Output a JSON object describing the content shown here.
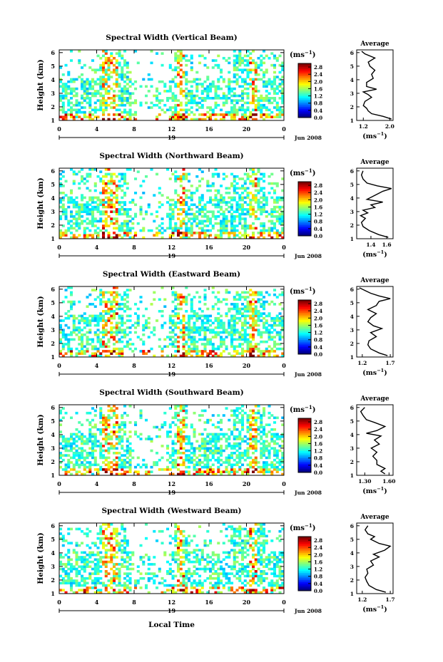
{
  "figure": {
    "xlabel_bottom": "Local Time",
    "date_label": "Jun 2008",
    "day_label": "19",
    "colorbar_unit": "(ms",
    "avg_title": "Average",
    "avg_xlabel": "(ms",
    "unit_exponent": "−1"
  },
  "chart_data": [
    {
      "type": "heatmap",
      "title": "Spectral Width (Vertical Beam)",
      "ylabel": "Height (km)",
      "xlabel": "Local Time",
      "x_ticks": [
        "0",
        "4",
        "8",
        "12",
        "16",
        "20",
        "0"
      ],
      "xlim": [
        0,
        24
      ],
      "y_ticks": [
        "1",
        "2",
        "3",
        "4",
        "5",
        "6"
      ],
      "ylim": [
        1,
        6.2
      ],
      "colorbar_ticks": [
        "0.0",
        "0.4",
        "0.8",
        "1.2",
        "1.6",
        "2.0",
        "2.4",
        "2.8"
      ],
      "colorbar_range": [
        0,
        3.0
      ],
      "average_profile": {
        "title": "Average",
        "x_ticks": [
          "1.2",
          "2.0"
        ],
        "xlim": [
          1.0,
          2.1
        ],
        "y_ticks": [
          "1",
          "2",
          "3",
          "4",
          "5",
          "6"
        ],
        "ylim": [
          1,
          6.2
        ],
        "points": [
          {
            "y": 1.1,
            "x": 2.05
          },
          {
            "y": 1.3,
            "x": 1.8
          },
          {
            "y": 1.5,
            "x": 1.45
          },
          {
            "y": 1.7,
            "x": 1.35
          },
          {
            "y": 1.9,
            "x": 1.3
          },
          {
            "y": 2.1,
            "x": 1.2
          },
          {
            "y": 2.4,
            "x": 1.25
          },
          {
            "y": 2.7,
            "x": 1.45
          },
          {
            "y": 2.9,
            "x": 1.35
          },
          {
            "y": 3.1,
            "x": 1.2
          },
          {
            "y": 3.3,
            "x": 1.6
          },
          {
            "y": 3.5,
            "x": 1.3
          },
          {
            "y": 3.8,
            "x": 1.3
          },
          {
            "y": 4.1,
            "x": 1.5
          },
          {
            "y": 4.4,
            "x": 1.45
          },
          {
            "y": 4.7,
            "x": 1.55
          },
          {
            "y": 5.0,
            "x": 1.4
          },
          {
            "y": 5.3,
            "x": 1.35
          },
          {
            "y": 5.6,
            "x": 1.55
          },
          {
            "y": 5.9,
            "x": 1.25
          },
          {
            "y": 6.1,
            "x": 1.15
          }
        ]
      }
    },
    {
      "type": "heatmap",
      "title": "Spectral Width (Northward Beam)",
      "ylabel": "Height (km)",
      "xlabel": "Local Time",
      "x_ticks": [
        "0",
        "4",
        "8",
        "12",
        "16",
        "20",
        "0"
      ],
      "xlim": [
        0,
        24
      ],
      "y_ticks": [
        "1",
        "2",
        "3",
        "4",
        "5",
        "6"
      ],
      "ylim": [
        1,
        6.2
      ],
      "colorbar_ticks": [
        "0.0",
        "0.4",
        "0.8",
        "1.2",
        "1.6",
        "2.0",
        "2.4",
        "2.8"
      ],
      "colorbar_range": [
        0,
        3.0
      ],
      "average_profile": {
        "title": "Average",
        "x_ticks": [
          "1.4",
          "1.6"
        ],
        "xlim": [
          1.22,
          1.68
        ],
        "y_ticks": [
          "1",
          "2",
          "3",
          "4",
          "5",
          "6"
        ],
        "ylim": [
          1,
          6.2
        ],
        "points": [
          {
            "y": 1.1,
            "x": 1.62
          },
          {
            "y": 1.3,
            "x": 1.5
          },
          {
            "y": 1.6,
            "x": 1.38
          },
          {
            "y": 1.9,
            "x": 1.3
          },
          {
            "y": 2.2,
            "x": 1.28
          },
          {
            "y": 2.5,
            "x": 1.33
          },
          {
            "y": 2.7,
            "x": 1.27
          },
          {
            "y": 2.9,
            "x": 1.36
          },
          {
            "y": 3.1,
            "x": 1.3
          },
          {
            "y": 3.3,
            "x": 1.45
          },
          {
            "y": 3.5,
            "x": 1.4
          },
          {
            "y": 3.7,
            "x": 1.55
          },
          {
            "y": 3.9,
            "x": 1.35
          },
          {
            "y": 4.2,
            "x": 1.45
          },
          {
            "y": 4.5,
            "x": 1.55
          },
          {
            "y": 4.7,
            "x": 1.66
          },
          {
            "y": 4.9,
            "x": 1.48
          },
          {
            "y": 5.1,
            "x": 1.35
          },
          {
            "y": 5.4,
            "x": 1.3
          },
          {
            "y": 5.7,
            "x": 1.28
          },
          {
            "y": 6.0,
            "x": 1.3
          }
        ]
      }
    },
    {
      "type": "heatmap",
      "title": "Spectral Width (Eastward Beam)",
      "ylabel": "Height (km)",
      "xlabel": "Local Time",
      "x_ticks": [
        "0",
        "4",
        "8",
        "12",
        "16",
        "20",
        "0"
      ],
      "xlim": [
        0,
        24
      ],
      "y_ticks": [
        "1",
        "2",
        "3",
        "4",
        "5",
        "6"
      ],
      "ylim": [
        1,
        6.2
      ],
      "colorbar_ticks": [
        "0.0",
        "0.4",
        "0.8",
        "1.2",
        "1.6",
        "2.0",
        "2.4",
        "2.8"
      ],
      "colorbar_range": [
        0,
        3.0
      ],
      "average_profile": {
        "title": "Average",
        "x_ticks": [
          "1.2",
          "1.7"
        ],
        "xlim": [
          1.1,
          1.75
        ],
        "y_ticks": [
          "1",
          "2",
          "3",
          "4",
          "5",
          "6"
        ],
        "ylim": [
          1,
          6.2
        ],
        "points": [
          {
            "y": 1.1,
            "x": 1.65
          },
          {
            "y": 1.3,
            "x": 1.5
          },
          {
            "y": 1.6,
            "x": 1.35
          },
          {
            "y": 1.9,
            "x": 1.3
          },
          {
            "y": 2.2,
            "x": 1.32
          },
          {
            "y": 2.5,
            "x": 1.45
          },
          {
            "y": 2.8,
            "x": 1.35
          },
          {
            "y": 3.1,
            "x": 1.55
          },
          {
            "y": 3.3,
            "x": 1.4
          },
          {
            "y": 3.6,
            "x": 1.3
          },
          {
            "y": 3.9,
            "x": 1.35
          },
          {
            "y": 4.2,
            "x": 1.45
          },
          {
            "y": 4.5,
            "x": 1.3
          },
          {
            "y": 4.8,
            "x": 1.45
          },
          {
            "y": 5.1,
            "x": 1.5
          },
          {
            "y": 5.3,
            "x": 1.7
          },
          {
            "y": 5.5,
            "x": 1.5
          },
          {
            "y": 5.7,
            "x": 1.35
          },
          {
            "y": 5.9,
            "x": 1.25
          },
          {
            "y": 6.1,
            "x": 1.15
          }
        ]
      }
    },
    {
      "type": "heatmap",
      "title": "Spectral Width (Southward Beam)",
      "ylabel": "Height (km)",
      "xlabel": "Local Time",
      "x_ticks": [
        "0",
        "4",
        "8",
        "12",
        "16",
        "20",
        "0"
      ],
      "xlim": [
        0,
        24
      ],
      "y_ticks": [
        "1",
        "2",
        "3",
        "4",
        "5",
        "6"
      ],
      "ylim": [
        1,
        6.2
      ],
      "colorbar_ticks": [
        "0.0",
        "0.4",
        "0.8",
        "1.2",
        "1.6",
        "2.0",
        "2.4",
        "2.8"
      ],
      "colorbar_range": [
        0,
        3.0
      ],
      "average_profile": {
        "title": "Average",
        "x_ticks": [
          "1.30",
          "1.60"
        ],
        "xlim": [
          1.2,
          1.65
        ],
        "y_ticks": [
          "1",
          "2",
          "3",
          "4",
          "5",
          "6"
        ],
        "ylim": [
          1,
          6.2
        ],
        "points": [
          {
            "y": 1.1,
            "x": 1.55
          },
          {
            "y": 1.3,
            "x": 1.5
          },
          {
            "y": 1.5,
            "x": 1.55
          },
          {
            "y": 1.8,
            "x": 1.45
          },
          {
            "y": 2.1,
            "x": 1.45
          },
          {
            "y": 2.4,
            "x": 1.4
          },
          {
            "y": 2.7,
            "x": 1.45
          },
          {
            "y": 3.0,
            "x": 1.38
          },
          {
            "y": 3.3,
            "x": 1.48
          },
          {
            "y": 3.6,
            "x": 1.42
          },
          {
            "y": 3.9,
            "x": 1.5
          },
          {
            "y": 4.1,
            "x": 1.32
          },
          {
            "y": 4.3,
            "x": 1.45
          },
          {
            "y": 4.6,
            "x": 1.55
          },
          {
            "y": 4.9,
            "x": 1.42
          },
          {
            "y": 5.1,
            "x": 1.32
          },
          {
            "y": 5.4,
            "x": 1.28
          },
          {
            "y": 5.7,
            "x": 1.25
          },
          {
            "y": 6.0,
            "x": 1.3
          }
        ]
      }
    },
    {
      "type": "heatmap",
      "title": "Spectral Width (Westward Beam)",
      "ylabel": "Height (km)",
      "xlabel": "Local Time",
      "x_ticks": [
        "0",
        "4",
        "8",
        "12",
        "16",
        "20",
        "0"
      ],
      "xlim": [
        0,
        24
      ],
      "y_ticks": [
        "1",
        "2",
        "3",
        "4",
        "5",
        "6"
      ],
      "ylim": [
        1,
        6.2
      ],
      "colorbar_ticks": [
        "0.0",
        "0.4",
        "0.8",
        "1.2",
        "1.6",
        "2.0",
        "2.4",
        "2.8"
      ],
      "colorbar_range": [
        0,
        3.0
      ],
      "average_profile": {
        "title": "Average",
        "x_ticks": [
          "1.2",
          "1.7"
        ],
        "xlim": [
          1.1,
          1.75
        ],
        "y_ticks": [
          "1",
          "2",
          "3",
          "4",
          "5",
          "6"
        ],
        "ylim": [
          1,
          6.2
        ],
        "points": [
          {
            "y": 1.1,
            "x": 1.62
          },
          {
            "y": 1.3,
            "x": 1.45
          },
          {
            "y": 1.6,
            "x": 1.32
          },
          {
            "y": 1.9,
            "x": 1.28
          },
          {
            "y": 2.2,
            "x": 1.25
          },
          {
            "y": 2.5,
            "x": 1.3
          },
          {
            "y": 2.8,
            "x": 1.28
          },
          {
            "y": 3.1,
            "x": 1.4
          },
          {
            "y": 3.4,
            "x": 1.35
          },
          {
            "y": 3.7,
            "x": 1.5
          },
          {
            "y": 3.9,
            "x": 1.4
          },
          {
            "y": 4.2,
            "x": 1.6
          },
          {
            "y": 4.5,
            "x": 1.7
          },
          {
            "y": 4.7,
            "x": 1.5
          },
          {
            "y": 5.0,
            "x": 1.35
          },
          {
            "y": 5.2,
            "x": 1.42
          },
          {
            "y": 5.4,
            "x": 1.3
          },
          {
            "y": 5.7,
            "x": 1.25
          },
          {
            "y": 6.0,
            "x": 1.3
          }
        ]
      }
    }
  ]
}
